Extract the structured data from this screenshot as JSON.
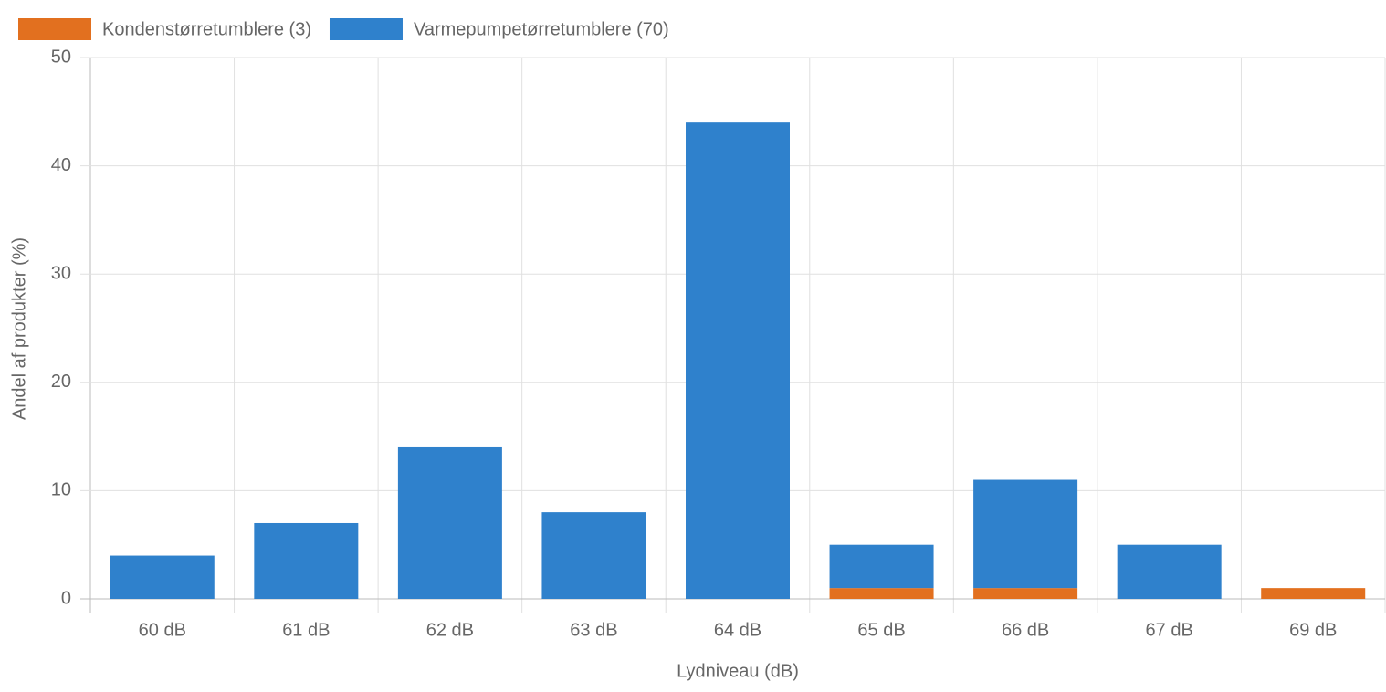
{
  "chart_data": {
    "type": "bar",
    "stacked": true,
    "x_label": "Lydniveau (dB)",
    "y_label": "Andel af produkter (%)",
    "categories": [
      "60 dB",
      "61 dB",
      "62 dB",
      "63 dB",
      "64 dB",
      "65 dB",
      "66 dB",
      "67 dB",
      "69 dB"
    ],
    "series": [
      {
        "name": "Kondenstørretumblere (3)",
        "color": "#e2701f",
        "values": [
          0,
          0,
          0,
          0,
          0,
          1,
          1,
          0,
          1
        ]
      },
      {
        "name": "Varmepumpetørretumblere (70)",
        "color": "#2f81cc",
        "values": [
          4,
          7,
          14,
          8,
          44,
          4,
          10,
          5,
          0
        ]
      }
    ],
    "ylim": [
      0,
      50
    ],
    "yticks": [
      0,
      10,
      20,
      30,
      40,
      50
    ],
    "grid": true,
    "legend": "top-left"
  }
}
